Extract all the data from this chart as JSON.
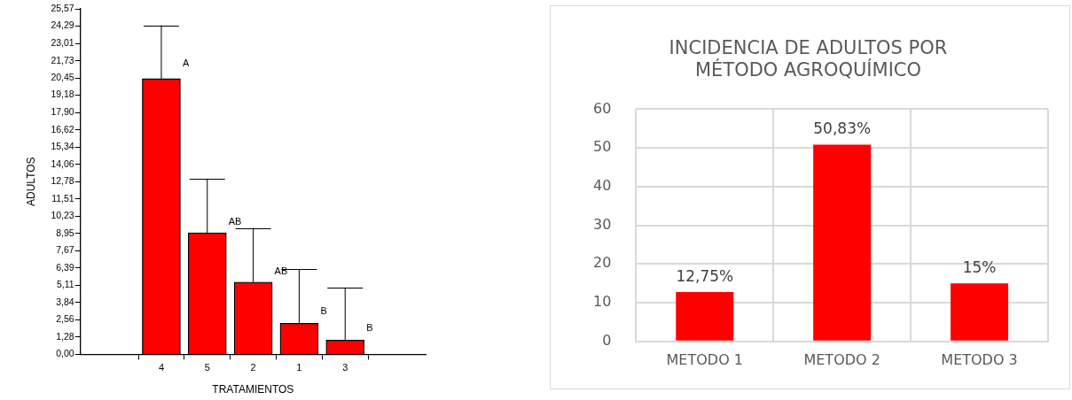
{
  "chart_data": [
    {
      "type": "bar",
      "xlabel": "TRATAMIENTOS",
      "ylabel": "ADULTOS",
      "categories": [
        "4",
        "5",
        "2",
        "1",
        "3"
      ],
      "color": "#ff0000",
      "values": [
        20.4,
        9.0,
        5.35,
        2.3,
        1.05
      ],
      "errors": [
        [
          20.4,
          24.35
        ],
        [
          9.0,
          13.0
        ],
        [
          5.35,
          9.35
        ],
        [
          2.3,
          6.3
        ],
        [
          1.05,
          4.93
        ]
      ],
      "ylim": [
        0,
        25.57
      ],
      "yticks": [
        {
          "value": 0,
          "label": "0,00"
        },
        {
          "value": 1.28,
          "label": "1,28"
        },
        {
          "value": 2.56,
          "label": "2,56"
        },
        {
          "value": 3.84,
          "label": "3,84"
        },
        {
          "value": 5.11,
          "label": "5,11"
        },
        {
          "value": 6.39,
          "label": "6,39"
        },
        {
          "value": 7.67,
          "label": "7,67"
        },
        {
          "value": 8.95,
          "label": "8,95"
        },
        {
          "value": 10.23,
          "label": "10,23"
        },
        {
          "value": 11.51,
          "label": "11,51"
        },
        {
          "value": 12.78,
          "label": "12,78"
        },
        {
          "value": 14.06,
          "label": "14,06"
        },
        {
          "value": 15.34,
          "label": "15,34"
        },
        {
          "value": 16.62,
          "label": "16,62"
        },
        {
          "value": 17.9,
          "label": "17,90"
        },
        {
          "value": 19.18,
          "label": "19,18"
        },
        {
          "value": 20.45,
          "label": "20,45"
        },
        {
          "value": 21.73,
          "label": "21,73"
        },
        {
          "value": 23.01,
          "label": "23,01"
        },
        {
          "value": 24.29,
          "label": "24,29"
        },
        {
          "value": 25.57,
          "label": "25,57"
        }
      ],
      "annotations": [
        {
          "text": "A",
          "x": "4",
          "y": 21.5
        },
        {
          "text": "AB",
          "x": "5",
          "y": 9.8
        },
        {
          "text": "AB",
          "x": "2",
          "y": 6.15
        },
        {
          "text": "B",
          "x": "1",
          "y": 3.15
        },
        {
          "text": "B",
          "x": "3",
          "y": 1.9
        }
      ],
      "grid": false
    },
    {
      "type": "bar",
      "title": "INCIDENCIA DE ADULTOS POR\nMÉTODO AGROQUÍMICO",
      "categories": [
        "METODO 1",
        "METODO 2",
        "METODO 3"
      ],
      "color": "#ff0000",
      "values": [
        12.75,
        50.83,
        15
      ],
      "value_labels": [
        "12,75%",
        "50,83%",
        "15%"
      ],
      "ylim": [
        0,
        60
      ],
      "yticks": [
        0,
        10,
        20,
        30,
        40,
        50,
        60
      ],
      "grid": true
    }
  ]
}
